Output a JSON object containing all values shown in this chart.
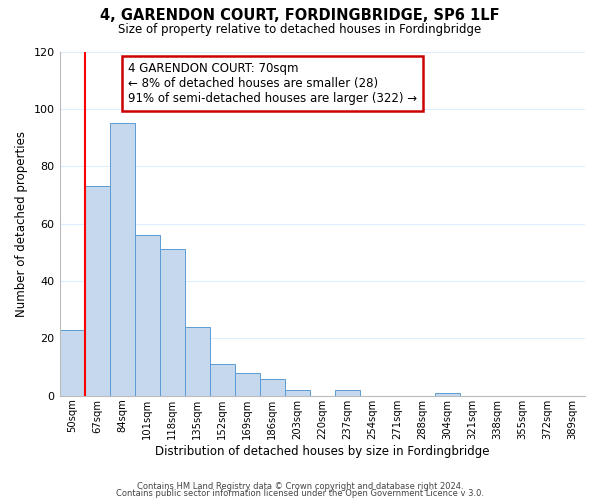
{
  "title": "4, GARENDON COURT, FORDINGBRIDGE, SP6 1LF",
  "subtitle": "Size of property relative to detached houses in Fordingbridge",
  "xlabel": "Distribution of detached houses by size in Fordingbridge",
  "ylabel": "Number of detached properties",
  "bin_labels": [
    "50sqm",
    "67sqm",
    "84sqm",
    "101sqm",
    "118sqm",
    "135sqm",
    "152sqm",
    "169sqm",
    "186sqm",
    "203sqm",
    "220sqm",
    "237sqm",
    "254sqm",
    "271sqm",
    "288sqm",
    "304sqm",
    "321sqm",
    "338sqm",
    "355sqm",
    "372sqm",
    "389sqm"
  ],
  "bar_values": [
    23,
    73,
    95,
    56,
    51,
    24,
    11,
    8,
    6,
    2,
    0,
    2,
    0,
    0,
    0,
    1,
    0,
    0,
    0,
    0,
    0
  ],
  "bar_color": "#c5d8ed",
  "bar_edge_color": "#5b9bd5",
  "highlight_label": "4 GARENDON COURT: 70sqm",
  "annotation_line1": "← 8% of detached houses are smaller (28)",
  "annotation_line2": "91% of semi-detached houses are larger (322) →",
  "red_line_bin_index": 1,
  "ylim": [
    0,
    120
  ],
  "yticks": [
    0,
    20,
    40,
    60,
    80,
    100,
    120
  ],
  "footer1": "Contains HM Land Registry data © Crown copyright and database right 2024.",
  "footer2": "Contains public sector information licensed under the Open Government Licence v 3.0.",
  "annotation_box_facecolor": "#ffffff",
  "annotation_box_edgecolor": "#cc0000",
  "grid_color": "#ddeeff",
  "figsize": [
    6.0,
    5.0
  ],
  "dpi": 100
}
